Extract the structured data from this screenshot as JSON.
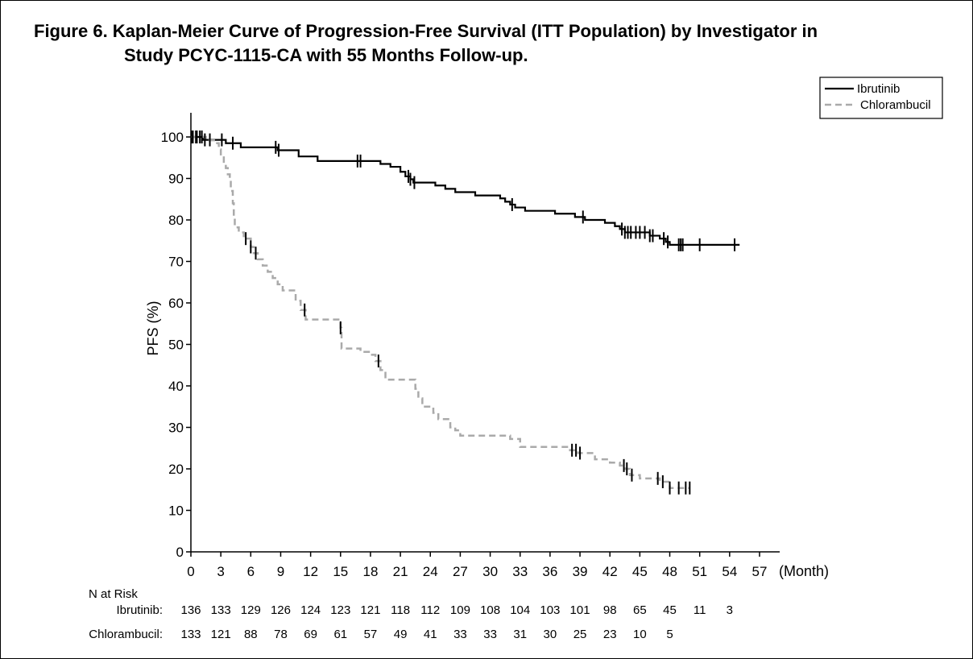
{
  "title": {
    "line1": "Figure 6. Kaplan-Meier Curve of Progression-Free Survival (ITT Population) by Investigator in",
    "line2": "Study PCYC-1115-CA with 55 Months Follow-up."
  },
  "chart_data": {
    "type": "line",
    "title": "Figure 6. Kaplan-Meier Curve of Progression-Free Survival (ITT Population) by Investigator in Study PCYC-1115-CA with 55 Months Follow-up.",
    "xlabel": "(Month)",
    "ylabel": "PFS (%)",
    "xlim": [
      0,
      57
    ],
    "ylim": [
      0,
      100
    ],
    "x_ticks": [
      0,
      3,
      6,
      9,
      12,
      15,
      18,
      21,
      24,
      27,
      30,
      33,
      36,
      39,
      42,
      45,
      48,
      51,
      54,
      57
    ],
    "y_ticks": [
      0,
      10,
      20,
      30,
      40,
      50,
      60,
      70,
      80,
      90,
      100
    ],
    "grid": false,
    "legend_position": "top-right",
    "series": [
      {
        "name": "Ibrutinib",
        "color": "#000000",
        "dash": "solid",
        "steps": [
          [
            0,
            100
          ],
          [
            1.2,
            99.3
          ],
          [
            2.3,
            99.3
          ],
          [
            3.5,
            98.5
          ],
          [
            5,
            97.5
          ],
          [
            8.7,
            96.8
          ],
          [
            10.8,
            95.3
          ],
          [
            12.7,
            94.2
          ],
          [
            18,
            94.2
          ],
          [
            19,
            93.5
          ],
          [
            20,
            92.8
          ],
          [
            21,
            91.6
          ],
          [
            21.5,
            90.5
          ],
          [
            22,
            89.8
          ],
          [
            22.3,
            89
          ],
          [
            24.5,
            88.3
          ],
          [
            25.5,
            87.5
          ],
          [
            26.5,
            86.7
          ],
          [
            28.5,
            85.9
          ],
          [
            31,
            85.2
          ],
          [
            31.5,
            84.4
          ],
          [
            32,
            83.7
          ],
          [
            32.5,
            83
          ],
          [
            33.5,
            82.2
          ],
          [
            36.5,
            81.5
          ],
          [
            38.5,
            80.7
          ],
          [
            39.5,
            80
          ],
          [
            41.5,
            79.3
          ],
          [
            42.5,
            78.5
          ],
          [
            43,
            77.8
          ],
          [
            43.5,
            77
          ],
          [
            46,
            76.2
          ],
          [
            47,
            75.5
          ],
          [
            47.6,
            74.7
          ],
          [
            48,
            74
          ],
          [
            55,
            74
          ]
        ],
        "censor_times": [
          0.1,
          0.5,
          0.9,
          1.4,
          1.9,
          3.1,
          4.2,
          8.5,
          8.8,
          16.7,
          17,
          21.8,
          22,
          22.4,
          32.2,
          39.3,
          43.2,
          43.5,
          43.8,
          44.1,
          44.6,
          45,
          45.5,
          46,
          46.3,
          47.4,
          47.8,
          48.9,
          49.1,
          49.3,
          51,
          54.5
        ]
      },
      {
        "name": "Chlorambucil",
        "color": "#aaaaaa",
        "dash": "dashed",
        "steps": [
          [
            0,
            100
          ],
          [
            1.5,
            99.2
          ],
          [
            2.5,
            98.5
          ],
          [
            2.8,
            97
          ],
          [
            3,
            95.5
          ],
          [
            3.3,
            94
          ],
          [
            3.5,
            92.5
          ],
          [
            3.7,
            91
          ],
          [
            3.9,
            89.5
          ],
          [
            4,
            87
          ],
          [
            4.2,
            84
          ],
          [
            4.3,
            81
          ],
          [
            4.4,
            78.2
          ],
          [
            4.8,
            77
          ],
          [
            5.3,
            75.5
          ],
          [
            6,
            73.5
          ],
          [
            6.3,
            72
          ],
          [
            6.7,
            70.5
          ],
          [
            7.2,
            69
          ],
          [
            7.7,
            67.5
          ],
          [
            8.2,
            66
          ],
          [
            8.7,
            64.5
          ],
          [
            9.2,
            63
          ],
          [
            10.5,
            60.5
          ],
          [
            11,
            58.3
          ],
          [
            11.5,
            56
          ],
          [
            15,
            54
          ],
          [
            15.1,
            49
          ],
          [
            17,
            48.2
          ],
          [
            18,
            47.5
          ],
          [
            18.5,
            46
          ],
          [
            19,
            43.8
          ],
          [
            19.5,
            41.5
          ],
          [
            22.5,
            39.3
          ],
          [
            22.8,
            37
          ],
          [
            23.2,
            35
          ],
          [
            24.3,
            33.5
          ],
          [
            24.8,
            32
          ],
          [
            26,
            30
          ],
          [
            26.5,
            29.3
          ],
          [
            27,
            28
          ],
          [
            32,
            27.2
          ],
          [
            33,
            25.3
          ],
          [
            38,
            24.5
          ],
          [
            38.8,
            23.8
          ],
          [
            40.5,
            22.3
          ],
          [
            42,
            21.5
          ],
          [
            43,
            20.8
          ],
          [
            43.5,
            20
          ],
          [
            44,
            18.5
          ],
          [
            45,
            17.7
          ],
          [
            47,
            16.9
          ],
          [
            48,
            15.4
          ],
          [
            50,
            15.4
          ]
        ],
        "censor_times": [
          0.2,
          0.6,
          1.1,
          5.5,
          6,
          6.5,
          11.4,
          15,
          18.8,
          38.2,
          38.6,
          39,
          43.4,
          43.7,
          44.2,
          46.8,
          47.3,
          48,
          48.9,
          49.6,
          50
        ]
      }
    ],
    "risk_table": {
      "heading": "N at Risk",
      "times": [
        0,
        3,
        6,
        9,
        12,
        15,
        18,
        21,
        24,
        27,
        30,
        33,
        36,
        39,
        42,
        45,
        48,
        51,
        54
      ],
      "rows": [
        {
          "label": "Ibrutinib:",
          "values": [
            "136",
            "133",
            "129",
            "126",
            "124",
            "123",
            "121",
            "118",
            "112",
            "109",
            "108",
            "104",
            "103",
            "101",
            "98",
            "65",
            "45",
            "11",
            "3"
          ]
        },
        {
          "label": "Chlorambucil:",
          "values": [
            "133",
            "121",
            "88",
            "78",
            "69",
            "61",
            "57",
            "49",
            "41",
            "33",
            "33",
            "31",
            "30",
            "25",
            "23",
            "10",
            "5",
            "",
            ""
          ]
        }
      ]
    }
  }
}
